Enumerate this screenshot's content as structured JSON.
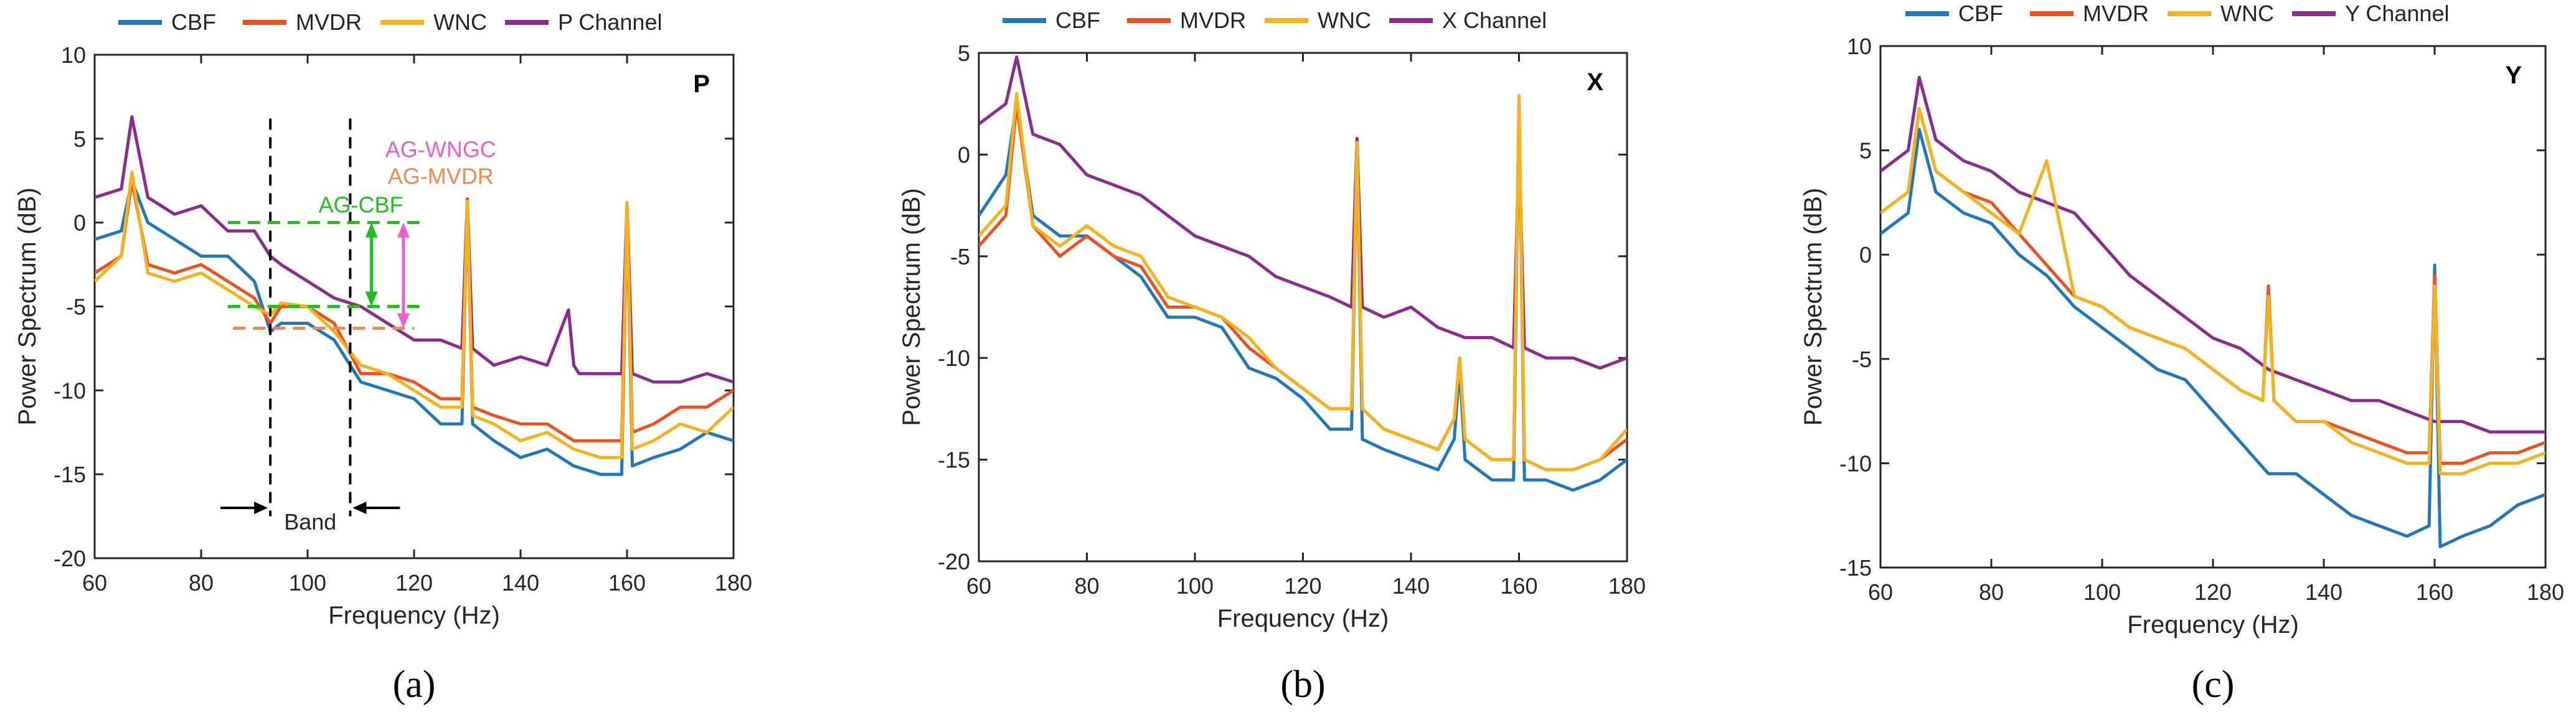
{
  "colors": {
    "CBF": "#1f77c0",
    "MVDR": "#f0501e",
    "WNC": "#f5b21b",
    "Channel": "#8b2a8f",
    "ag_cbf": "#1fbf1f",
    "ag_wngc": "#f25cc9",
    "ag_mvdr": "#f28a4a",
    "band": "#000000"
  },
  "chart_data": [
    {
      "type": "line",
      "panel_label": "P",
      "caption": "(a)",
      "xlabel": "Frequency (Hz)",
      "ylabel": "Power Spectrum (dB)",
      "xlim": [
        60,
        180
      ],
      "ylim": [
        -20,
        10
      ],
      "xticks": [
        60,
        80,
        100,
        120,
        140,
        160,
        180
      ],
      "yticks": [
        -20,
        -15,
        -10,
        -5,
        0,
        5,
        10
      ],
      "legend": [
        "CBF",
        "MVDR",
        "WNC",
        "P Channel"
      ],
      "series": [
        {
          "name": "CBF",
          "x": [
            60,
            65,
            67,
            70,
            75,
            80,
            85,
            90,
            93,
            95,
            100,
            105,
            110,
            115,
            120,
            125,
            129,
            130,
            131,
            135,
            140,
            145,
            150,
            155,
            159,
            160,
            161,
            165,
            170,
            175,
            180
          ],
          "values": [
            -1,
            -0.5,
            2.5,
            0,
            -1,
            -2,
            -2,
            -3.5,
            -6.5,
            -6,
            -6,
            -7,
            -9.5,
            -10,
            -10.5,
            -12,
            -12,
            1.2,
            -12,
            -13,
            -14,
            -13.5,
            -14.5,
            -15,
            -15,
            0.8,
            -14.5,
            -14,
            -13.5,
            -12.5,
            -13
          ]
        },
        {
          "name": "MVDR",
          "x": [
            60,
            65,
            67,
            70,
            75,
            80,
            85,
            90,
            93,
            95,
            100,
            105,
            110,
            115,
            120,
            125,
            129,
            130,
            131,
            135,
            140,
            145,
            150,
            155,
            159,
            160,
            161,
            165,
            170,
            175,
            180
          ],
          "values": [
            -3,
            -2,
            2.5,
            -2.5,
            -3,
            -2.5,
            -3.5,
            -4.5,
            -6,
            -5,
            -5,
            -6,
            -9,
            -9,
            -9.5,
            -10.5,
            -10.5,
            1.2,
            -11,
            -11.5,
            -12,
            -12,
            -13,
            -13,
            -13,
            1,
            -12.5,
            -12,
            -11,
            -11,
            -10
          ]
        },
        {
          "name": "WNC",
          "x": [
            60,
            65,
            67,
            70,
            75,
            80,
            85,
            90,
            93,
            95,
            100,
            105,
            110,
            115,
            120,
            125,
            129,
            130,
            131,
            135,
            140,
            145,
            150,
            155,
            159,
            160,
            161,
            165,
            170,
            175,
            180
          ],
          "values": [
            -3.5,
            -2,
            3,
            -3,
            -3.5,
            -3,
            -4,
            -5,
            -5.5,
            -4.8,
            -5,
            -6.5,
            -8.5,
            -9,
            -10,
            -11,
            -11,
            1.3,
            -11.5,
            -12,
            -13,
            -12.5,
            -13.5,
            -14,
            -14,
            1.2,
            -13.5,
            -13,
            -12,
            -12.5,
            -11
          ]
        },
        {
          "name": "P Channel",
          "x": [
            60,
            65,
            67,
            70,
            75,
            80,
            85,
            90,
            93,
            95,
            100,
            105,
            110,
            115,
            120,
            125,
            129,
            130,
            131,
            135,
            140,
            145,
            149,
            150,
            151,
            155,
            159,
            160,
            161,
            165,
            170,
            175,
            180
          ],
          "values": [
            1.5,
            2,
            6.3,
            1.5,
            0.5,
            1,
            -0.5,
            -0.5,
            -2,
            -2.5,
            -3.5,
            -4.5,
            -5,
            -6,
            -7,
            -7,
            -7.5,
            1.4,
            -7.5,
            -8.5,
            -8,
            -8.5,
            -5.2,
            -8.5,
            -9,
            -9,
            -9,
            1.2,
            -9,
            -9.5,
            -9.5,
            -9,
            -9.5
          ]
        }
      ],
      "annotations": {
        "band_label": "Band",
        "band_lines_x": [
          93,
          108
        ],
        "ag_cbf_label": "AG-CBF",
        "ag_wngc_label": "AG-WNGC",
        "ag_mvdr_label": "AG-MVDR",
        "ag_cbf_levels": [
          0,
          -5
        ],
        "ag_mvdr_level": -6.3
      }
    },
    {
      "type": "line",
      "panel_label": "X",
      "caption": "(b)",
      "xlabel": "Frequency (Hz)",
      "ylabel": "Power Spectrum (dB)",
      "xlim": [
        60,
        180
      ],
      "ylim": [
        -20,
        5
      ],
      "xticks": [
        60,
        80,
        100,
        120,
        140,
        160,
        180
      ],
      "yticks": [
        -20,
        -15,
        -10,
        -5,
        0,
        5
      ],
      "legend": [
        "CBF",
        "MVDR",
        "WNC",
        "X Channel"
      ],
      "series": [
        {
          "name": "CBF",
          "x": [
            60,
            65,
            67,
            70,
            75,
            80,
            85,
            90,
            95,
            100,
            105,
            110,
            115,
            120,
            125,
            129,
            130,
            131,
            135,
            140,
            145,
            148,
            149,
            150,
            155,
            159,
            160,
            161,
            165,
            170,
            175,
            180
          ],
          "values": [
            -3,
            -1,
            2.5,
            -3,
            -4,
            -4,
            -5,
            -6,
            -8,
            -8,
            -8.5,
            -10.5,
            -11,
            -12,
            -13.5,
            -13.5,
            0.5,
            -14,
            -14.5,
            -15,
            -15.5,
            -14,
            -10.5,
            -15,
            -16,
            -16,
            2.5,
            -16,
            -16,
            -16.5,
            -16,
            -15
          ]
        },
        {
          "name": "MVDR",
          "x": [
            60,
            65,
            67,
            70,
            75,
            80,
            85,
            90,
            95,
            100,
            105,
            110,
            115,
            120,
            125,
            129,
            130,
            131,
            135,
            140,
            145,
            148,
            149,
            150,
            155,
            159,
            160,
            161,
            165,
            170,
            175,
            180
          ],
          "values": [
            -4.5,
            -3,
            2.5,
            -3.5,
            -5,
            -4,
            -5,
            -5.5,
            -7.5,
            -7.5,
            -8,
            -9.5,
            -10.5,
            -11.5,
            -12.5,
            -12.5,
            0.5,
            -12.5,
            -13.5,
            -14,
            -14.5,
            -13,
            -10,
            -14,
            -15,
            -15,
            2.8,
            -15,
            -15.5,
            -15.5,
            -15,
            -14
          ]
        },
        {
          "name": "WNC",
          "x": [
            60,
            65,
            67,
            70,
            75,
            80,
            85,
            90,
            95,
            100,
            105,
            110,
            115,
            120,
            125,
            129,
            130,
            131,
            135,
            140,
            145,
            148,
            149,
            150,
            155,
            159,
            160,
            161,
            165,
            170,
            175,
            180
          ],
          "values": [
            -4,
            -2.5,
            3,
            -3.5,
            -4.5,
            -3.5,
            -4.5,
            -5,
            -7,
            -7.5,
            -8,
            -9,
            -10.5,
            -11.5,
            -12.5,
            -12.5,
            0.6,
            -12.5,
            -13.5,
            -14,
            -14.5,
            -13,
            -10,
            -14,
            -15,
            -15,
            2.9,
            -15,
            -15.5,
            -15.5,
            -15,
            -13.5
          ]
        },
        {
          "name": "X Channel",
          "x": [
            60,
            65,
            67,
            70,
            75,
            80,
            85,
            90,
            95,
            100,
            105,
            110,
            115,
            120,
            125,
            129,
            130,
            131,
            135,
            140,
            145,
            150,
            155,
            159,
            160,
            161,
            165,
            170,
            175,
            180
          ],
          "values": [
            1.5,
            2.5,
            4.8,
            1,
            0.5,
            -1,
            -1.5,
            -2,
            -3,
            -4,
            -4.5,
            -5,
            -6,
            -6.5,
            -7,
            -7.5,
            0.8,
            -7.5,
            -8,
            -7.5,
            -8.5,
            -9,
            -9,
            -9.5,
            0.4,
            -9.5,
            -10,
            -10,
            -10.5,
            -10
          ]
        }
      ]
    },
    {
      "type": "line",
      "panel_label": "Y",
      "caption": "(c)",
      "xlabel": "Frequency (Hz)",
      "ylabel": "Power Spectrum (dB)",
      "xlim": [
        60,
        180
      ],
      "ylim": [
        -15,
        10
      ],
      "xticks": [
        60,
        80,
        100,
        120,
        140,
        160,
        180
      ],
      "yticks": [
        -15,
        -10,
        -5,
        0,
        5,
        10
      ],
      "legend": [
        "CBF",
        "MVDR",
        "WNC",
        "Y Channel"
      ],
      "series": [
        {
          "name": "CBF",
          "x": [
            60,
            65,
            67,
            70,
            75,
            80,
            85,
            90,
            95,
            100,
            105,
            110,
            115,
            120,
            125,
            130,
            135,
            140,
            145,
            150,
            155,
            159,
            160,
            161,
            165,
            170,
            175,
            180
          ],
          "values": [
            1,
            2,
            6,
            3,
            2,
            1.5,
            0,
            -1,
            -2.5,
            -3.5,
            -4.5,
            -5.5,
            -6,
            -7.5,
            -9,
            -10.5,
            -10.5,
            -11.5,
            -12.5,
            -13,
            -13.5,
            -13,
            -0.5,
            -14,
            -13.5,
            -13,
            -12,
            -11.5
          ]
        },
        {
          "name": "MVDR",
          "x": [
            60,
            65,
            67,
            70,
            75,
            80,
            85,
            90,
            95,
            100,
            105,
            110,
            115,
            120,
            125,
            129,
            130,
            131,
            135,
            140,
            145,
            150,
            155,
            159,
            160,
            161,
            165,
            170,
            175,
            180
          ],
          "values": [
            2,
            3,
            7,
            4,
            3,
            2.5,
            1,
            -0.5,
            -2,
            -2.5,
            -3.5,
            -4,
            -4.5,
            -5.5,
            -6.5,
            -7,
            -1.5,
            -7,
            -8,
            -8,
            -8.5,
            -9,
            -9.5,
            -9.5,
            -1,
            -10,
            -10,
            -9.5,
            -9.5,
            -9
          ]
        },
        {
          "name": "WNC",
          "x": [
            60,
            65,
            67,
            70,
            75,
            80,
            85,
            90,
            95,
            100,
            105,
            110,
            115,
            120,
            125,
            129,
            130,
            131,
            135,
            140,
            145,
            150,
            155,
            159,
            160,
            161,
            165,
            170,
            175,
            180
          ],
          "values": [
            2,
            3,
            7,
            4,
            3,
            2,
            1,
            4.5,
            -2,
            -2.5,
            -3.5,
            -4,
            -4.5,
            -5.5,
            -6.5,
            -7,
            -2,
            -7,
            -8,
            -8,
            -9,
            -9.5,
            -10,
            -10,
            -1.5,
            -10.5,
            -10.5,
            -10,
            -10,
            -9.5
          ]
        },
        {
          "name": "Y Channel",
          "x": [
            60,
            65,
            67,
            70,
            75,
            80,
            85,
            90,
            95,
            100,
            105,
            110,
            115,
            120,
            125,
            130,
            135,
            140,
            145,
            150,
            155,
            160,
            165,
            170,
            175,
            180
          ],
          "values": [
            4,
            5,
            8.5,
            5.5,
            4.5,
            4,
            3,
            2.5,
            2,
            0.5,
            -1,
            -2,
            -3,
            -4,
            -4.5,
            -5.5,
            -6,
            -6.5,
            -7,
            -7,
            -7.5,
            -8,
            -8,
            -8.5,
            -8.5,
            -8.5
          ]
        }
      ]
    }
  ]
}
